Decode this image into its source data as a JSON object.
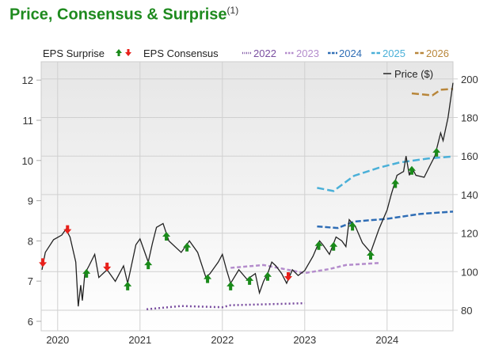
{
  "title": "Price, Consensus & Surprise",
  "title_note": "(1)",
  "chart_data": {
    "type": "line",
    "legend": {
      "surprise": "EPS Surprise",
      "consensus": "EPS Consensus",
      "price": "Price ($)"
    },
    "left_axis": {
      "ticks": [
        6,
        7,
        8,
        9,
        10,
        11,
        12
      ],
      "range": [
        5.9,
        12.45
      ]
    },
    "right_axis": {
      "ticks": [
        80,
        100,
        120,
        140,
        160,
        180,
        200
      ],
      "range": [
        74,
        209
      ]
    },
    "x_range": [
      2019.8,
      2024.8
    ],
    "x_ticks": [
      {
        "v": 2020,
        "label": "2020"
      },
      {
        "v": 2021,
        "label": "2021"
      },
      {
        "v": 2022,
        "label": "2022"
      },
      {
        "v": 2023,
        "label": "2023"
      },
      {
        "v": 2024,
        "label": "2024"
      }
    ],
    "grid": true,
    "price": {
      "name": "Price ($)",
      "color": "#222222",
      "points": [
        [
          2019.81,
          101
        ],
        [
          2019.85,
          110
        ],
        [
          2019.95,
          116.6
        ],
        [
          2020.05,
          119
        ],
        [
          2020.1,
          122
        ],
        [
          2020.15,
          118
        ],
        [
          2020.22,
          105
        ],
        [
          2020.25,
          82
        ],
        [
          2020.28,
          93
        ],
        [
          2020.3,
          85
        ],
        [
          2020.33,
          99
        ],
        [
          2020.38,
          103
        ],
        [
          2020.45,
          109
        ],
        [
          2020.5,
          97
        ],
        [
          2020.6,
          101
        ],
        [
          2020.7,
          95
        ],
        [
          2020.8,
          103
        ],
        [
          2020.85,
          94
        ],
        [
          2020.95,
          114
        ],
        [
          2021.0,
          117
        ],
        [
          2021.05,
          111
        ],
        [
          2021.1,
          105
        ],
        [
          2021.15,
          114.6
        ],
        [
          2021.2,
          123
        ],
        [
          2021.28,
          125
        ],
        [
          2021.35,
          116
        ],
        [
          2021.5,
          110
        ],
        [
          2021.6,
          116
        ],
        [
          2021.7,
          110
        ],
        [
          2021.8,
          97
        ],
        [
          2021.85,
          99
        ],
        [
          2021.95,
          105
        ],
        [
          2022.0,
          109
        ],
        [
          2022.05,
          101
        ],
        [
          2022.1,
          94
        ],
        [
          2022.2,
          101
        ],
        [
          2022.3,
          96
        ],
        [
          2022.4,
          99
        ],
        [
          2022.45,
          89
        ],
        [
          2022.5,
          95
        ],
        [
          2022.55,
          99
        ],
        [
          2022.6,
          105
        ],
        [
          2022.65,
          103
        ],
        [
          2022.72,
          99
        ],
        [
          2022.78,
          94
        ],
        [
          2022.85,
          101
        ],
        [
          2022.92,
          98
        ],
        [
          2023.0,
          100.6
        ],
        [
          2023.1,
          108
        ],
        [
          2023.18,
          116
        ],
        [
          2023.22,
          114
        ],
        [
          2023.3,
          109
        ],
        [
          2023.38,
          118
        ],
        [
          2023.45,
          116
        ],
        [
          2023.5,
          113
        ],
        [
          2023.54,
          127
        ],
        [
          2023.62,
          123
        ],
        [
          2023.7,
          115
        ],
        [
          2023.8,
          110
        ],
        [
          2023.9,
          122
        ],
        [
          2024.0,
          132
        ],
        [
          2024.05,
          140
        ],
        [
          2024.12,
          150
        ],
        [
          2024.2,
          152
        ],
        [
          2024.23,
          160
        ],
        [
          2024.27,
          150
        ],
        [
          2024.3,
          154
        ],
        [
          2024.35,
          150
        ],
        [
          2024.45,
          149
        ],
        [
          2024.52,
          155
        ],
        [
          2024.58,
          160
        ],
        [
          2024.65,
          172
        ],
        [
          2024.68,
          168
        ],
        [
          2024.74,
          180
        ],
        [
          2024.8,
          198
        ]
      ]
    },
    "consensus": [
      {
        "name": "2022",
        "color": "#7a4ea0",
        "dash": "2,3",
        "points": [
          [
            2021.08,
            6.3
          ],
          [
            2021.5,
            6.38
          ],
          [
            2022.0,
            6.35
          ],
          [
            2022.1,
            6.4
          ],
          [
            2023.0,
            6.45
          ]
        ]
      },
      {
        "name": "2023",
        "color": "#b48ccc",
        "dash": "5,3",
        "points": [
          [
            2022.1,
            7.33
          ],
          [
            2022.5,
            7.4
          ],
          [
            2023.0,
            7.2
          ],
          [
            2023.3,
            7.3
          ],
          [
            2023.5,
            7.4
          ],
          [
            2023.9,
            7.45
          ]
        ]
      },
      {
        "name": "2024",
        "color": "#2f6db5",
        "dash": "7,3",
        "points": [
          [
            2023.15,
            8.36
          ],
          [
            2023.4,
            8.32
          ],
          [
            2023.6,
            8.48
          ],
          [
            2024.0,
            8.55
          ],
          [
            2024.4,
            8.67
          ],
          [
            2024.8,
            8.73
          ]
        ]
      },
      {
        "name": "2025",
        "color": "#4ab0d8",
        "dash": "9,4",
        "points": [
          [
            2023.15,
            9.32
          ],
          [
            2023.35,
            9.24
          ],
          [
            2023.6,
            9.62
          ],
          [
            2023.9,
            9.82
          ],
          [
            2024.15,
            9.95
          ],
          [
            2024.5,
            10.05
          ],
          [
            2024.8,
            10.1
          ]
        ]
      },
      {
        "name": "2026",
        "color": "#b8863a",
        "dash": "9,4",
        "points": [
          [
            2024.3,
            11.67
          ],
          [
            2024.55,
            11.62
          ],
          [
            2024.65,
            11.76
          ],
          [
            2024.8,
            11.78
          ]
        ]
      }
    ],
    "surprises": [
      {
        "date": 2019.82,
        "dir": "down"
      },
      {
        "date": 2020.12,
        "dir": "down"
      },
      {
        "date": 2020.35,
        "dir": "up"
      },
      {
        "date": 2020.6,
        "dir": "down"
      },
      {
        "date": 2020.85,
        "dir": "up"
      },
      {
        "date": 2021.1,
        "dir": "up"
      },
      {
        "date": 2021.32,
        "dir": "up"
      },
      {
        "date": 2021.57,
        "dir": "up"
      },
      {
        "date": 2021.82,
        "dir": "up"
      },
      {
        "date": 2022.1,
        "dir": "up"
      },
      {
        "date": 2022.33,
        "dir": "up"
      },
      {
        "date": 2022.55,
        "dir": "up"
      },
      {
        "date": 2022.8,
        "dir": "down"
      },
      {
        "date": 2023.17,
        "dir": "up"
      },
      {
        "date": 2023.35,
        "dir": "up"
      },
      {
        "date": 2023.58,
        "dir": "up"
      },
      {
        "date": 2023.8,
        "dir": "up"
      },
      {
        "date": 2024.1,
        "dir": "up"
      },
      {
        "date": 2024.3,
        "dir": "up"
      },
      {
        "date": 2024.6,
        "dir": "up"
      }
    ],
    "colors": {
      "up": "#1a8a1a",
      "down": "#e8201a"
    }
  }
}
